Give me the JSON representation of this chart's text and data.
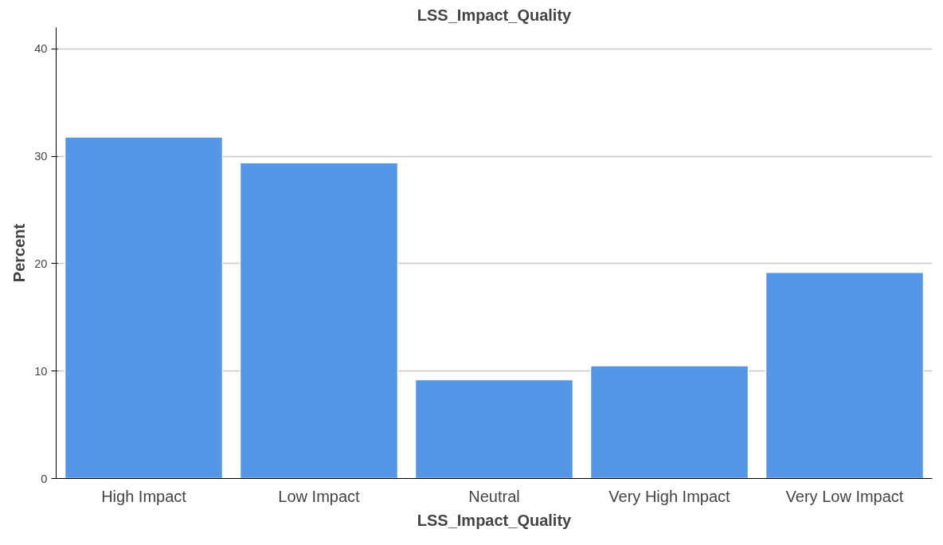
{
  "chart_data": {
    "type": "bar",
    "title": "LSS_Impact_Quality",
    "xlabel": "LSS_Impact_Quality",
    "ylabel": "Percent",
    "categories": [
      "High Impact",
      "Low Impact",
      "Neutral",
      "Very High Impact",
      "Very Low Impact"
    ],
    "values": [
      31.8,
      29.4,
      9.2,
      10.5,
      19.2
    ],
    "color": "#5596e6",
    "ylim": [
      0,
      42
    ],
    "yticks": [
      0,
      10,
      20,
      30,
      40
    ],
    "grid": "y"
  }
}
